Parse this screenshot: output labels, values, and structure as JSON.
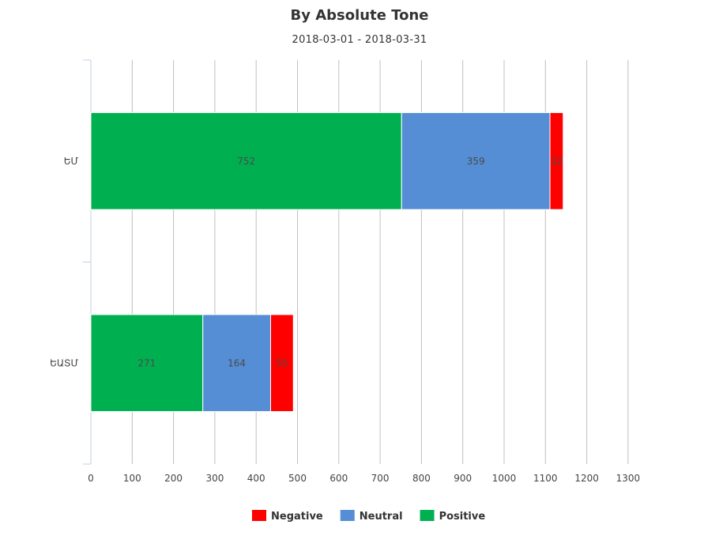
{
  "chart_data": {
    "type": "bar",
    "orientation": "horizontal",
    "stacked": true,
    "title": "By Absolute Tone",
    "subtitle": "2018-03-01 - 2018-03-31",
    "categories": [
      "ԵՄ",
      "ԵԱՏՄ"
    ],
    "series": [
      {
        "name": "Positive",
        "color": "#00b050",
        "values": [
          752,
          271
        ]
      },
      {
        "name": "Neutral",
        "color": "#558ed5",
        "values": [
          359,
          164
        ]
      },
      {
        "name": "Negative",
        "color": "#ff0000",
        "values": [
          32,
          55
        ]
      }
    ],
    "xlim": [
      0,
      1300
    ],
    "xticks": [
      0,
      100,
      200,
      300,
      400,
      500,
      600,
      700,
      800,
      900,
      1000,
      1100,
      1200,
      1300
    ],
    "grid": true,
    "legend_position": "bottom-center",
    "legend_order": [
      "Negative",
      "Neutral",
      "Positive"
    ]
  }
}
